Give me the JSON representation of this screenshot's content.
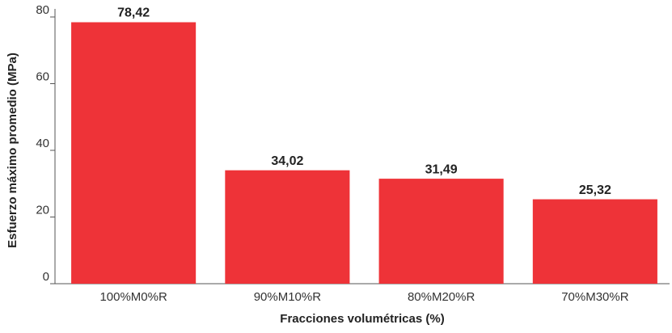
{
  "chart_data": {
    "type": "bar",
    "x_label": "Fracciones volumétricas (%)",
    "y_label": "Esfuerzo máximo promedio (MPa)",
    "categories": [
      "100%M0%R",
      "90%M10%R",
      "80%M20%R",
      "70%M30%R"
    ],
    "values": [
      78.42,
      34.02,
      31.49,
      25.32
    ],
    "value_labels": [
      "78,42",
      "34,02",
      "31,49",
      "25,32"
    ],
    "color": "#ee3338",
    "ylim": [
      0,
      80
    ],
    "yticks": [
      0,
      20,
      40,
      60,
      80
    ],
    "grid": false
  }
}
